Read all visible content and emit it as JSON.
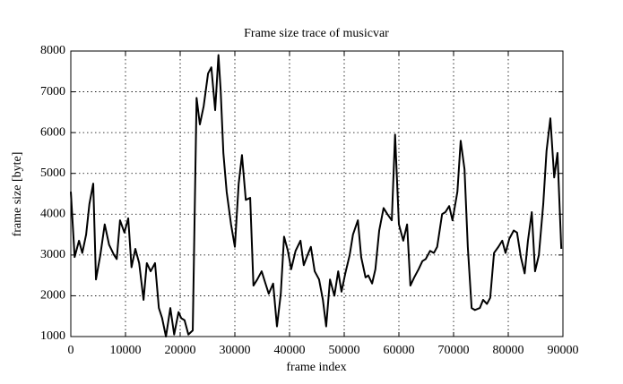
{
  "chart_data": {
    "type": "line",
    "title": "Frame size trace of musicvar",
    "x_label": "frame index",
    "y_label": "frame size [byte]",
    "x": [
      0,
      700,
      1500,
      2100,
      2800,
      3400,
      4100,
      4600,
      5400,
      6200,
      7000,
      7900,
      8400,
      9000,
      9800,
      10500,
      11100,
      11800,
      12500,
      13300,
      13900,
      14600,
      15400,
      16100,
      16700,
      17400,
      18200,
      18900,
      19700,
      20200,
      20800,
      21500,
      22300,
      23000,
      23600,
      24300,
      25100,
      25700,
      26400,
      27000,
      27400,
      27900,
      28500,
      29300,
      30000,
      30700,
      31300,
      32000,
      32800,
      33400,
      34100,
      34900,
      35600,
      36200,
      37000,
      37700,
      38400,
      39000,
      39700,
      40300,
      41100,
      42000,
      42600,
      43300,
      43900,
      44600,
      45400,
      46100,
      46700,
      47400,
      48200,
      48900,
      49500,
      50200,
      51000,
      51600,
      52500,
      53100,
      53900,
      54400,
      55100,
      55700,
      56400,
      57200,
      57900,
      58700,
      59300,
      60000,
      60800,
      61500,
      62100,
      62800,
      63600,
      64300,
      64900,
      65700,
      66400,
      67000,
      67900,
      68500,
      69200,
      69800,
      70700,
      71300,
      72000,
      72600,
      73300,
      73900,
      74800,
      75400,
      76100,
      76700,
      77400,
      78200,
      78900,
      79500,
      80200,
      81000,
      81600,
      82300,
      83000,
      83600,
      84300,
      84900,
      85600,
      86400,
      87000,
      87700,
      88400,
      89000,
      89700
    ],
    "series": [
      {
        "name": "musicvar",
        "color": "#000000",
        "values": [
          4550,
          2950,
          3350,
          3050,
          3500,
          4250,
          4750,
          2400,
          3000,
          3750,
          3250,
          3000,
          2900,
          3850,
          3550,
          3900,
          2700,
          3150,
          2800,
          1900,
          2800,
          2600,
          2800,
          1700,
          1450,
          1000,
          1700,
          1050,
          1600,
          1450,
          1400,
          1050,
          1150,
          6850,
          6200,
          6650,
          7450,
          7600,
          6550,
          7900,
          7050,
          5500,
          4550,
          3750,
          3200,
          4750,
          5450,
          4350,
          4400,
          2250,
          2400,
          2600,
          2300,
          2050,
          2300,
          1250,
          2050,
          3450,
          3100,
          2650,
          3100,
          3350,
          2750,
          3000,
          3200,
          2600,
          2400,
          1900,
          1250,
          2400,
          2000,
          2600,
          2100,
          2550,
          3000,
          3500,
          3850,
          2950,
          2450,
          2500,
          2300,
          2650,
          3600,
          4150,
          4000,
          3850,
          5950,
          3750,
          3350,
          3750,
          2250,
          2450,
          2650,
          2850,
          2900,
          3100,
          3050,
          3200,
          4000,
          4050,
          4200,
          3850,
          4550,
          5800,
          5100,
          3200,
          1700,
          1650,
          1700,
          1900,
          1800,
          1950,
          3050,
          3200,
          3350,
          3050,
          3400,
          3600,
          3550,
          2950,
          2550,
          3350,
          4050,
          2600,
          3000,
          4250,
          5550,
          6350,
          4900,
          5500,
          3150
        ]
      }
    ],
    "xlim": [
      0,
      90000
    ],
    "ylim": [
      1000,
      8000
    ],
    "xticks": [
      0,
      10000,
      20000,
      30000,
      40000,
      50000,
      60000,
      70000,
      80000,
      90000
    ],
    "yticks": [
      1000,
      2000,
      3000,
      4000,
      5000,
      6000,
      7000,
      8000
    ],
    "grid": true
  }
}
